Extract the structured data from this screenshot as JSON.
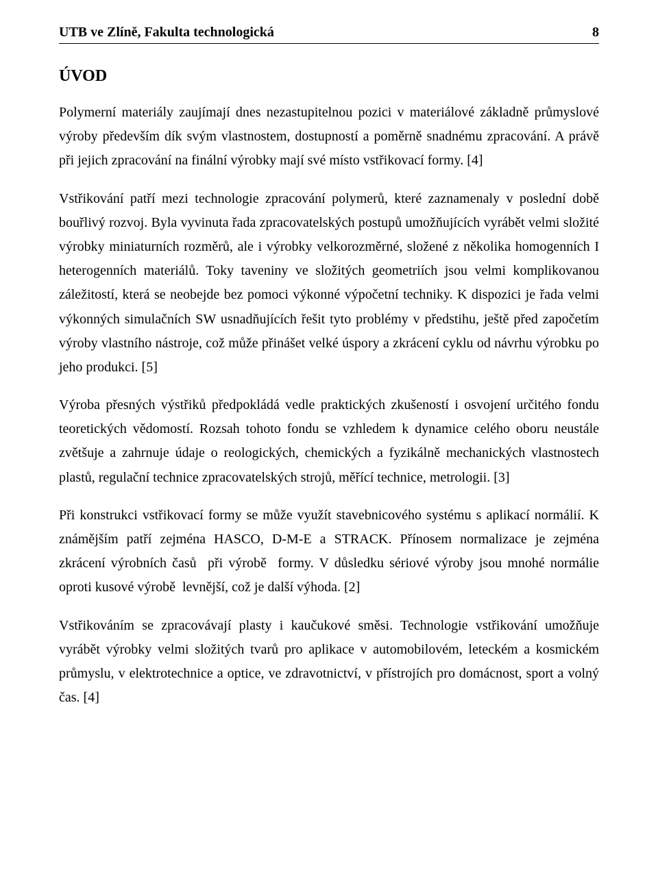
{
  "header": {
    "left": "UTB ve Zlíně, Fakulta technologická",
    "page_number": "8"
  },
  "section_title": "ÚVOD",
  "paragraphs": [
    "Polymerní materiály zaujímají dnes nezastupitelnou pozici v materiálové základně průmyslové výroby především dík svým vlastnostem, dostupností a poměrně snadnému zpracování. A právě při jejich zpracování na finální výrobky mají své místo vstřikovací formy. [4]",
    "Vstřikování patří mezi technologie zpracování polymerů, které zaznamenaly v poslední době bouřlivý rozvoj. Byla vyvinuta řada zpracovatelských postupů umožňujících vyrábět velmi složité výrobky miniaturních rozměrů, ale i výrobky velkorozměrné, složené z několika homogenních I heterogenních materiálů. Toky taveniny ve složitých geometriích jsou velmi komplikovanou záležitostí, která se neobejde bez pomoci výkonné výpočetní techniky. K dispozici je řada velmi výkonných simulačních SW usnadňujících řešit tyto problémy v předstihu, ještě před započetím výroby vlastního nástroje, což může přinášet velké úspory a zkrácení cyklu od návrhu výrobku po jeho produkci. [5]",
    "Výroba přesných výstřiků předpokládá vedle praktických zkušeností i osvojení určitého fondu teoretických vědomostí. Rozsah tohoto fondu se vzhledem k dynamice celého oboru neustále zvětšuje a zahrnuje údaje o reologických, chemických a fyzikálně mechanických vlastnostech plastů, regulační technice zpracovatelských strojů, měřící technice, metrologii. [3]",
    "Při konstrukci vstřikovací formy se může využít stavebnicového systému s aplikací normálií. K známějším patří zejména HASCO, D-M-E a STRACK. Přínosem normalizace je zejména zkrácení výrobních časů  při výrobě  formy. V důsledku sériové výroby jsou mnohé normálie oproti kusové výrobě  levnější, což je další výhoda. [2]",
    "Vstřikováním se zpracovávají plasty i kaučukové směsi. Technologie vstřikování umožňuje vyrábět výrobky velmi složitých tvarů pro aplikace v automobilovém, leteckém a kosmickém průmyslu, v elektrotechnice a optice, ve zdravotnictví, v přístrojích pro domácnost, sport a volný čas. [4]"
  ],
  "colors": {
    "background": "#ffffff",
    "text": "#000000",
    "rule": "#000000"
  },
  "typography": {
    "font_family": "Times New Roman",
    "header_fontsize_pt": 15,
    "title_fontsize_pt": 18,
    "body_fontsize_pt": 15,
    "line_height": 1.76
  }
}
